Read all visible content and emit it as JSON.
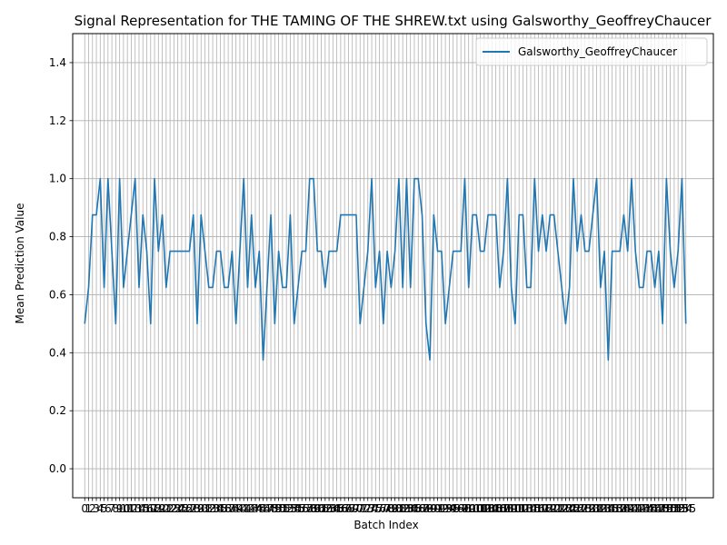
{
  "chart_data": {
    "type": "line",
    "title": "Signal Representation for THE TAMING OF THE SHREW.txt using Galsworthy_GeoffreyChaucer",
    "xlabel": "Batch Index",
    "ylabel": "Mean Prediction Value",
    "xlim": [
      -3.1,
      162.1
    ],
    "ylim": [
      -0.1,
      1.5
    ],
    "yticks": [
      0.0,
      0.2,
      0.4,
      0.6,
      0.8,
      1.0,
      1.2,
      1.4
    ],
    "grid": true,
    "legend_position": "top-right",
    "colors": {
      "series": "#1f77b4",
      "grid": "#b0b0b0"
    },
    "series": [
      {
        "name": "Galsworthy_GeoffreyChaucer",
        "y": [
          0.5,
          0.625,
          0.875,
          0.875,
          1.0,
          0.625,
          1.0,
          0.75,
          0.5,
          1.0,
          0.625,
          0.75,
          0.875,
          1.0,
          0.625,
          0.875,
          0.75,
          0.5,
          1.0,
          0.75,
          0.875,
          0.625,
          0.75,
          0.75,
          0.75,
          0.75,
          0.75,
          0.75,
          0.875,
          0.5,
          0.875,
          0.75,
          0.625,
          0.625,
          0.75,
          0.75,
          0.625,
          0.625,
          0.75,
          0.5,
          0.75,
          1.0,
          0.625,
          0.875,
          0.625,
          0.75,
          0.375,
          0.625,
          0.875,
          0.5,
          0.75,
          0.625,
          0.625,
          0.875,
          0.5,
          0.625,
          0.75,
          0.75,
          1.0,
          1.0,
          0.75,
          0.75,
          0.625,
          0.75,
          0.75,
          0.75,
          0.875,
          0.875,
          0.875,
          0.875,
          0.875,
          0.5,
          0.625,
          0.75,
          1.0,
          0.625,
          0.75,
          0.5,
          0.75,
          0.625,
          0.75,
          1.0,
          0.625,
          1.0,
          0.625,
          1.0,
          1.0,
          0.875,
          0.5,
          0.375,
          0.875,
          0.75,
          0.75,
          0.5,
          0.625,
          0.75,
          0.75,
          0.75,
          1.0,
          0.625,
          0.875,
          0.875,
          0.75,
          0.75,
          0.875,
          0.875,
          0.875,
          0.625,
          0.75,
          1.0,
          0.625,
          0.5,
          0.875,
          0.875,
          0.625,
          0.625,
          1.0,
          0.75,
          0.875,
          0.75,
          0.875,
          0.875,
          0.75,
          0.625,
          0.5,
          0.625,
          1.0,
          0.75,
          0.875,
          0.75,
          0.75,
          0.875,
          1.0,
          0.625,
          0.75,
          0.375,
          0.75,
          0.75,
          0.75,
          0.875,
          0.75,
          1.0,
          0.75,
          0.625,
          0.625,
          0.75,
          0.75,
          0.625,
          0.75,
          0.5,
          1.0,
          0.75,
          0.625,
          0.75,
          1.0,
          0.5
        ]
      }
    ]
  }
}
